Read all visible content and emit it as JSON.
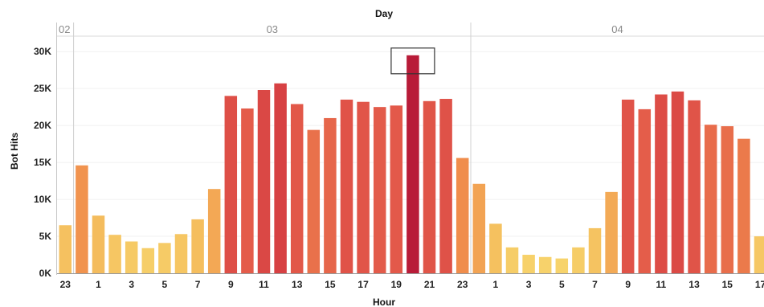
{
  "chart_data": {
    "type": "bar",
    "title": "",
    "column_header_title": "Day",
    "xlabel": "Hour",
    "ylabel": "Bot Hits",
    "ylim": [
      0,
      31000
    ],
    "yticks": [
      0,
      5000,
      10000,
      15000,
      20000,
      25000,
      30000
    ],
    "ytick_labels": [
      "0K",
      "5K",
      "10K",
      "15K",
      "20K",
      "25K",
      "30K"
    ],
    "grid": true,
    "highlighted_bar": {
      "day": "03",
      "hour": 20
    },
    "color_scale": [
      "#f7d36b",
      "#f4b85a",
      "#f08c4c",
      "#e35a4a",
      "#c8223a"
    ],
    "days": [
      {
        "label": "02",
        "hours": [
          23
        ],
        "values": [
          6500
        ]
      },
      {
        "label": "03",
        "hours": [
          0,
          1,
          2,
          3,
          4,
          5,
          6,
          7,
          8,
          9,
          10,
          11,
          12,
          13,
          14,
          15,
          16,
          17,
          18,
          19,
          20,
          21,
          22,
          23
        ],
        "values": [
          14600,
          7800,
          5200,
          4300,
          3400,
          4100,
          5300,
          7300,
          11400,
          24000,
          22300,
          24800,
          25700,
          22900,
          19400,
          21000,
          23500,
          23200,
          22500,
          22700,
          29500,
          23300,
          23600,
          15600
        ]
      },
      {
        "label": "04",
        "hours": [
          0,
          1,
          2,
          3,
          4,
          5,
          6,
          7,
          8,
          9,
          10,
          11,
          12,
          13,
          14,
          15,
          16,
          17
        ],
        "values": [
          12100,
          6700,
          3500,
          2500,
          2200,
          2000,
          3500,
          6100,
          11000,
          23500,
          22200,
          24200,
          24600,
          23400,
          20100,
          19900,
          18200,
          5000
        ]
      }
    ],
    "x_tick_labels_shown": [
      "23",
      "1",
      "3",
      "5",
      "7",
      "9",
      "11",
      "13",
      "15",
      "17",
      "19",
      "21",
      "23",
      "1",
      "3",
      "5",
      "7",
      "9",
      "11",
      "13",
      "15",
      "17"
    ]
  }
}
